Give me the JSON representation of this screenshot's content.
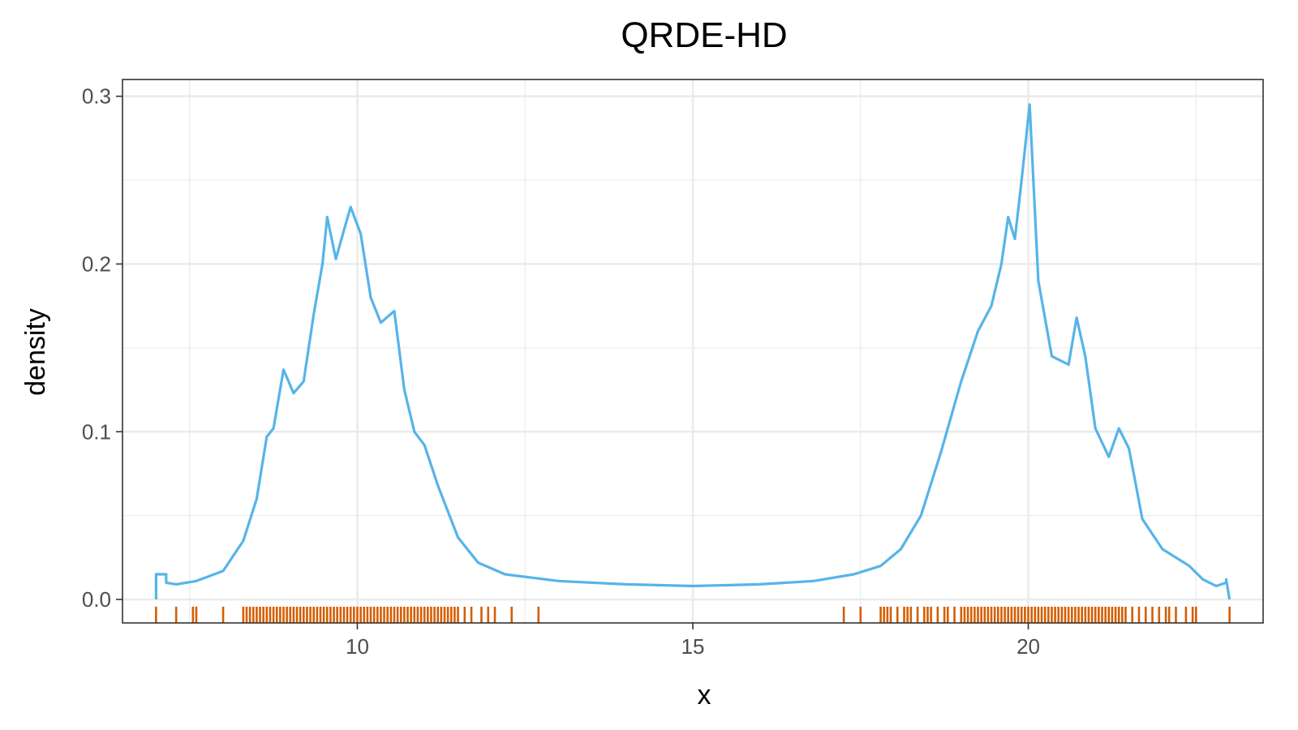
{
  "chart_data": {
    "type": "line",
    "title": "QRDE-HD",
    "xlabel": "x",
    "ylabel": "density",
    "xlim": [
      6.5,
      23.5
    ],
    "ylim": [
      -0.014,
      0.31
    ],
    "x_ticks": [
      10,
      15,
      20
    ],
    "y_ticks": [
      0.0,
      0.1,
      0.2,
      0.3
    ],
    "x_tick_labels": [
      "10",
      "15",
      "20"
    ],
    "y_tick_labels": [
      "0.0",
      "0.1",
      "0.2",
      "0.3"
    ],
    "grid": true,
    "colors": {
      "density_line": "#56B4E9",
      "rug": "#D55E00"
    },
    "series": [
      {
        "x": [
          7.0,
          7.0,
          7.15,
          7.15,
          7.3,
          7.6,
          8.0,
          8.3,
          8.5,
          8.65,
          8.75,
          8.9,
          9.05,
          9.2,
          9.35,
          9.48,
          9.55,
          9.68,
          9.8,
          9.9,
          10.05,
          10.2,
          10.35,
          10.55,
          10.7,
          10.85,
          11.0,
          11.2,
          11.5,
          11.8,
          12.2,
          13.0,
          14.0,
          15.0,
          16.0,
          16.8,
          17.4,
          17.8,
          18.1,
          18.4,
          18.7,
          19.0,
          19.25,
          19.45,
          19.6,
          19.7,
          19.8,
          19.9,
          20.02,
          20.15,
          20.35,
          20.6,
          20.72,
          20.85,
          21.0,
          21.2,
          21.35,
          21.5,
          21.7,
          22.0,
          22.4,
          22.6,
          22.8,
          22.95,
          22.95,
          23.0
        ],
        "y": [
          0.0,
          0.015,
          0.015,
          0.01,
          0.009,
          0.011,
          0.017,
          0.035,
          0.06,
          0.097,
          0.102,
          0.137,
          0.123,
          0.13,
          0.17,
          0.2,
          0.228,
          0.203,
          0.22,
          0.234,
          0.218,
          0.18,
          0.165,
          0.172,
          0.125,
          0.1,
          0.092,
          0.068,
          0.037,
          0.022,
          0.015,
          0.011,
          0.009,
          0.008,
          0.009,
          0.011,
          0.015,
          0.02,
          0.03,
          0.05,
          0.088,
          0.13,
          0.16,
          0.175,
          0.2,
          0.228,
          0.215,
          0.25,
          0.295,
          0.19,
          0.145,
          0.14,
          0.168,
          0.145,
          0.102,
          0.085,
          0.102,
          0.09,
          0.048,
          0.03,
          0.02,
          0.012,
          0.008,
          0.01,
          0.012,
          0.0
        ]
      }
    ],
    "rug": [
      7.0,
      7.3,
      7.55,
      7.6,
      8.0,
      8.3,
      8.35,
      8.4,
      8.45,
      8.5,
      8.55,
      8.6,
      8.65,
      8.7,
      8.75,
      8.8,
      8.85,
      8.9,
      8.95,
      9.0,
      9.05,
      9.1,
      9.15,
      9.2,
      9.25,
      9.3,
      9.35,
      9.4,
      9.45,
      9.5,
      9.55,
      9.6,
      9.65,
      9.7,
      9.75,
      9.8,
      9.85,
      9.9,
      9.95,
      10.0,
      10.05,
      10.1,
      10.15,
      10.2,
      10.25,
      10.3,
      10.35,
      10.4,
      10.45,
      10.5,
      10.55,
      10.6,
      10.65,
      10.7,
      10.75,
      10.8,
      10.85,
      10.9,
      10.95,
      11.0,
      11.05,
      11.1,
      11.15,
      11.2,
      11.25,
      11.3,
      11.35,
      11.4,
      11.45,
      11.5,
      11.6,
      11.7,
      11.85,
      11.95,
      12.05,
      12.3,
      12.7,
      17.25,
      17.5,
      17.8,
      17.85,
      17.9,
      17.95,
      18.05,
      18.15,
      18.2,
      18.25,
      18.35,
      18.45,
      18.5,
      18.55,
      18.65,
      18.75,
      18.8,
      18.9,
      19.0,
      19.05,
      19.1,
      19.15,
      19.2,
      19.25,
      19.3,
      19.35,
      19.4,
      19.45,
      19.5,
      19.55,
      19.6,
      19.65,
      19.7,
      19.75,
      19.8,
      19.85,
      19.9,
      19.95,
      20.0,
      20.05,
      20.1,
      20.15,
      20.2,
      20.25,
      20.3,
      20.35,
      20.4,
      20.45,
      20.5,
      20.55,
      20.6,
      20.65,
      20.7,
      20.75,
      20.8,
      20.85,
      20.9,
      20.95,
      21.0,
      21.05,
      21.1,
      21.15,
      21.2,
      21.25,
      21.3,
      21.35,
      21.4,
      21.45,
      21.55,
      21.65,
      21.75,
      21.85,
      21.95,
      22.05,
      22.1,
      22.2,
      22.35,
      22.45,
      22.5,
      23.0
    ]
  }
}
